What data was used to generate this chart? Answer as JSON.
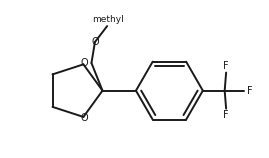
{
  "bg_color": "#ffffff",
  "line_color": "#1a1a1a",
  "text_color": "#1a1a1a",
  "line_width": 1.4,
  "font_size": 7.0,
  "fig_width": 2.69,
  "fig_height": 1.58,
  "dpi": 100,
  "methyl_label": "methyl",
  "f_label": "F",
  "o_label": "O"
}
